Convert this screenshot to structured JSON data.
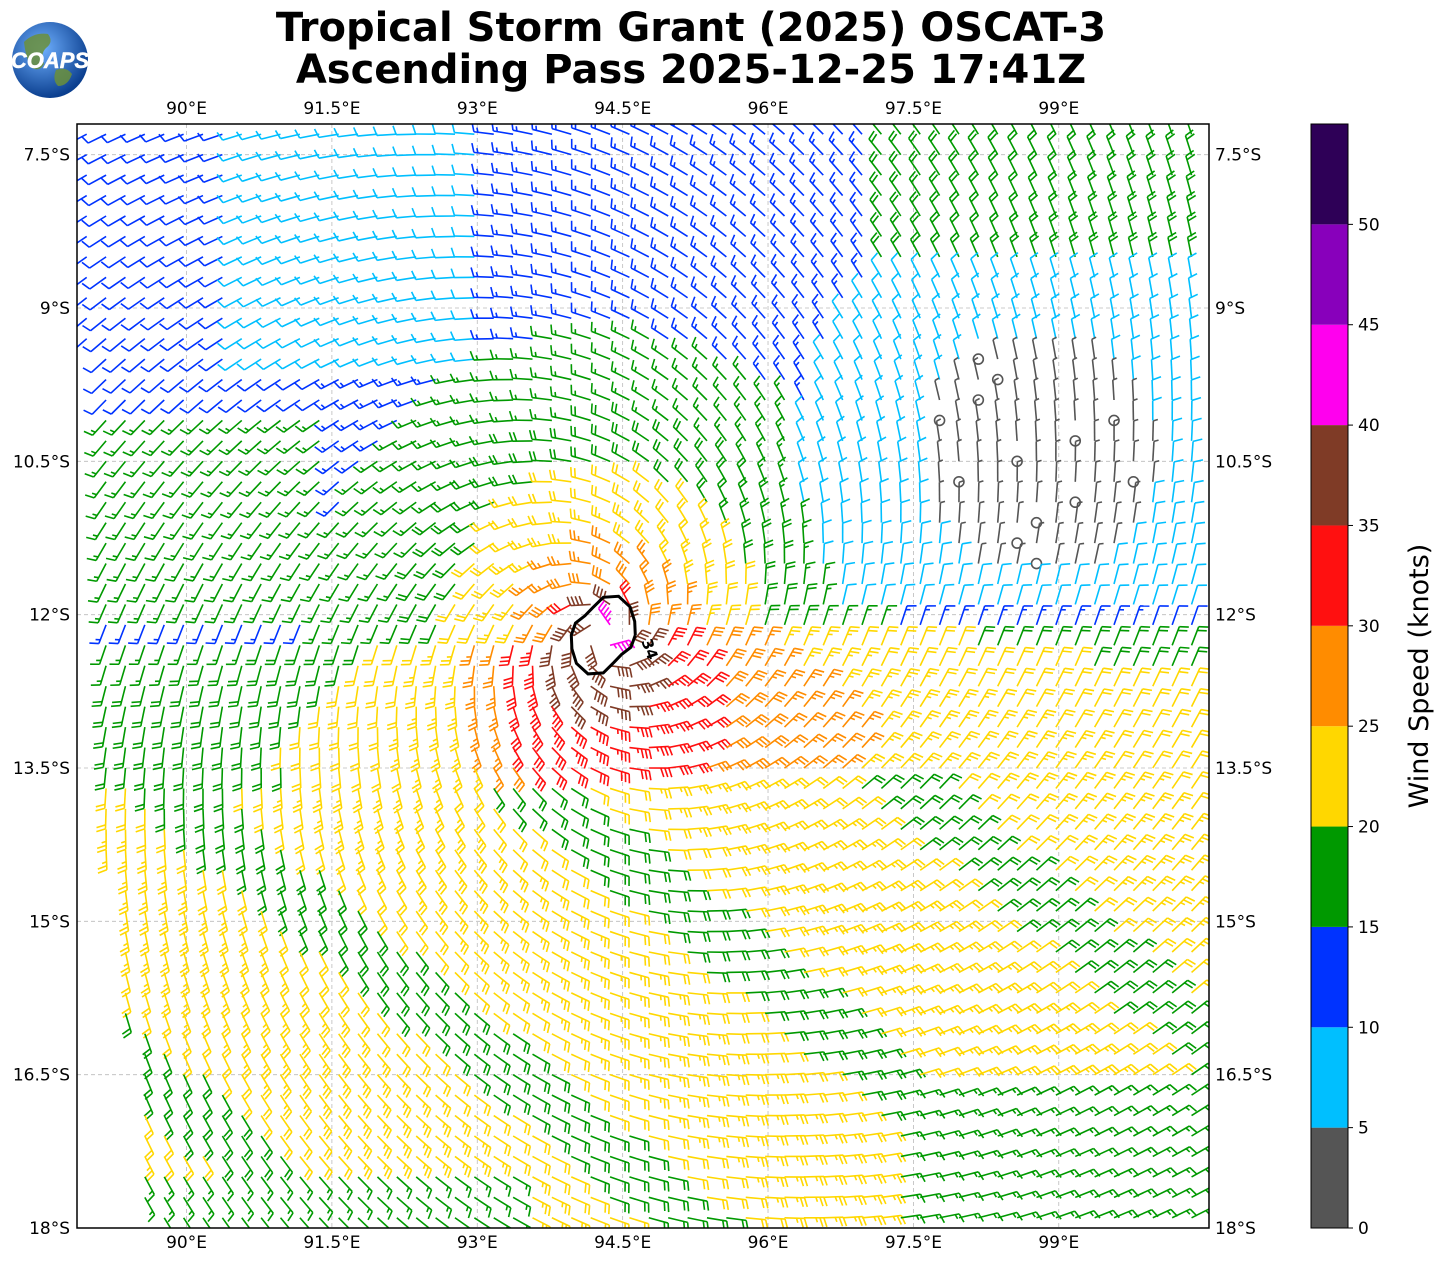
{
  "title": {
    "line1": "Tropical Storm Grant (2025) OSCAT-3",
    "line2": "Ascending Pass 2025-12-25 17:41Z"
  },
  "logo": {
    "text": "COAPS",
    "icon": "globe-icon"
  },
  "map": {
    "lon_range": [
      88.87,
      100.55
    ],
    "lat_range": [
      -18.0,
      -7.2
    ],
    "lon_ticks": [
      {
        "value": 90.0,
        "label": "90°E"
      },
      {
        "value": 91.5,
        "label": "91.5°E"
      },
      {
        "value": 93.0,
        "label": "93°E"
      },
      {
        "value": 94.5,
        "label": "94.5°E"
      },
      {
        "value": 96.0,
        "label": "96°E"
      },
      {
        "value": 97.5,
        "label": "97.5°E"
      },
      {
        "value": 99.0,
        "label": "99°E"
      }
    ],
    "lat_ticks": [
      {
        "value": -7.5,
        "label": "7.5°S"
      },
      {
        "value": -9.0,
        "label": "9°S"
      },
      {
        "value": -10.5,
        "label": "10.5°S"
      },
      {
        "value": -12.0,
        "label": "12°S"
      },
      {
        "value": -13.5,
        "label": "13.5°S"
      },
      {
        "value": -15.0,
        "label": "15°S"
      },
      {
        "value": -16.5,
        "label": "16.5°S"
      },
      {
        "value": -18.0,
        "label": "18°S"
      }
    ],
    "grid": true,
    "storm_center": {
      "lon": 94.3,
      "lat": -12.2
    },
    "calm_center": {
      "lon": 98.8,
      "lat": -10.5
    },
    "contour": {
      "label": "34",
      "speed_kt": 34
    }
  },
  "colorbar": {
    "label": "Wind Speed (knots)",
    "tick_labels": [
      "0",
      "5",
      "10",
      "15",
      "20",
      "25",
      "30",
      "35",
      "40",
      "45",
      "50"
    ],
    "bins": [
      {
        "from": 0,
        "to": 5,
        "color": "#555555"
      },
      {
        "from": 5,
        "to": 10,
        "color": "#00bfff"
      },
      {
        "from": 10,
        "to": 15,
        "color": "#0033ff"
      },
      {
        "from": 15,
        "to": 20,
        "color": "#009900"
      },
      {
        "from": 20,
        "to": 25,
        "color": "#ffd700"
      },
      {
        "from": 25,
        "to": 30,
        "color": "#ff8c00"
      },
      {
        "from": 30,
        "to": 35,
        "color": "#ff1010"
      },
      {
        "from": 35,
        "to": 40,
        "color": "#7f3b26"
      },
      {
        "from": 40,
        "to": 45,
        "color": "#ff00ee"
      },
      {
        "from": 45,
        "to": 50,
        "color": "#8800bb"
      },
      {
        "from": 50,
        "to": 55,
        "color": "#2e0057"
      }
    ]
  }
}
